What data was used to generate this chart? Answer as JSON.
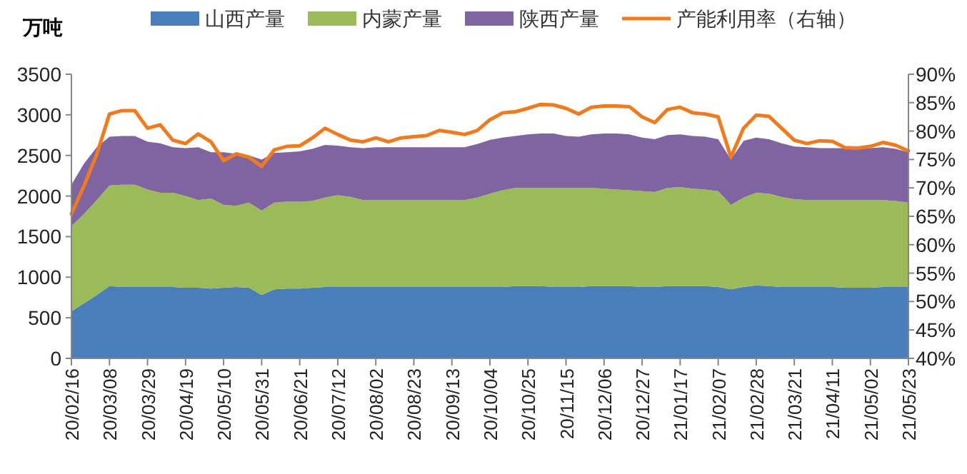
{
  "chart_data": {
    "type": "area",
    "stacked": true,
    "ylabel": "万吨",
    "legend": "top",
    "categories": [
      "20/02/16",
      null,
      null,
      "20/03/08",
      null,
      null,
      "20/03/29",
      null,
      null,
      "20/04/19",
      null,
      null,
      "20/05/10",
      null,
      null,
      "20/05/31",
      null,
      null,
      "20/06/21",
      null,
      null,
      "20/07/12",
      null,
      null,
      "20/08/02",
      null,
      null,
      "20/08/23",
      null,
      null,
      "20/09/13",
      null,
      null,
      "20/10/04",
      null,
      null,
      "20/10/25",
      null,
      null,
      "20/11/15",
      null,
      null,
      "20/12/06",
      null,
      null,
      "20/12/27",
      null,
      null,
      "21/01/17",
      null,
      null,
      "21/02/07",
      null,
      null,
      "21/02/28",
      null,
      null,
      "21/03/21",
      null,
      null,
      "21/04/11",
      null,
      null,
      "21/05/02",
      null,
      null,
      "21/05/23"
    ],
    "ylim": [
      0,
      3500
    ],
    "yticks": [
      0,
      500,
      1000,
      1500,
      2000,
      2500,
      3000,
      3500
    ],
    "y2lim": [
      40,
      90
    ],
    "y2ticks": [
      {
        "value": 40,
        "label": "40%"
      },
      {
        "value": 45,
        "label": "45%"
      },
      {
        "value": 50,
        "label": "50%"
      },
      {
        "value": 55,
        "label": "55%"
      },
      {
        "value": 60,
        "label": "60%"
      },
      {
        "value": 65,
        "label": "65%"
      },
      {
        "value": 70,
        "label": "70%"
      },
      {
        "value": 75,
        "label": "75%"
      },
      {
        "value": 80,
        "label": "80%"
      },
      {
        "value": 85,
        "label": "85%"
      },
      {
        "value": 90,
        "label": "90%"
      }
    ],
    "series": [
      {
        "name": "山西产量",
        "color": "#4a7ebb",
        "values": [
          580,
          680,
          780,
          890,
          880,
          880,
          880,
          880,
          880,
          870,
          870,
          860,
          870,
          880,
          870,
          780,
          850,
          860,
          860,
          870,
          880,
          880,
          880,
          880,
          880,
          880,
          880,
          880,
          880,
          880,
          880,
          880,
          880,
          880,
          880,
          890,
          890,
          890,
          880,
          880,
          880,
          890,
          890,
          890,
          890,
          880,
          880,
          890,
          890,
          890,
          890,
          880,
          850,
          880,
          900,
          890,
          880,
          880,
          880,
          880,
          880,
          870,
          870,
          870,
          880,
          880,
          880
        ]
      },
      {
        "name": "内蒙产量",
        "color": "#9bbb59",
        "values": [
          1050,
          1100,
          1170,
          1240,
          1260,
          1260,
          1200,
          1160,
          1160,
          1130,
          1080,
          1110,
          1020,
          1000,
          1050,
          1040,
          1070,
          1070,
          1070,
          1070,
          1100,
          1130,
          1110,
          1070,
          1070,
          1070,
          1070,
          1070,
          1070,
          1070,
          1070,
          1070,
          1100,
          1150,
          1190,
          1210,
          1210,
          1210,
          1220,
          1220,
          1220,
          1210,
          1200,
          1190,
          1180,
          1180,
          1170,
          1210,
          1220,
          1200,
          1190,
          1180,
          1040,
          1100,
          1140,
          1140,
          1110,
          1080,
          1070,
          1070,
          1070,
          1080,
          1080,
          1080,
          1070,
          1060,
          1040
        ]
      },
      {
        "name": "陕西产量",
        "color": "#8064a2",
        "values": [
          510,
          620,
          650,
          600,
          600,
          600,
          590,
          610,
          560,
          590,
          650,
          570,
          650,
          640,
          580,
          630,
          610,
          610,
          620,
          640,
          650,
          610,
          610,
          640,
          650,
          650,
          650,
          650,
          650,
          650,
          650,
          650,
          660,
          660,
          650,
          640,
          660,
          670,
          670,
          640,
          630,
          660,
          680,
          690,
          690,
          660,
          650,
          650,
          650,
          650,
          650,
          640,
          560,
          700,
          680,
          670,
          660,
          650,
          650,
          640,
          640,
          640,
          640,
          640,
          650,
          640,
          620
        ]
      },
      {
        "name": "产能利用率（右轴）",
        "type": "line",
        "axis": "y2",
        "color": "#f07a1e",
        "values": [
          65.4,
          70.4,
          75.9,
          83.0,
          83.6,
          83.6,
          80.5,
          81.1,
          78.4,
          77.8,
          79.5,
          78.1,
          74.8,
          76.0,
          75.4,
          73.8,
          76.7,
          77.3,
          77.4,
          78.8,
          80.5,
          79.4,
          78.4,
          78.1,
          78.8,
          78.1,
          78.8,
          79.0,
          79.2,
          80.1,
          79.8,
          79.4,
          80.1,
          82.0,
          83.2,
          83.4,
          84.0,
          84.7,
          84.6,
          84.0,
          83.0,
          84.2,
          84.4,
          84.4,
          84.3,
          82.5,
          81.5,
          83.8,
          84.2,
          83.2,
          83.0,
          82.5,
          75.4,
          80.5,
          82.8,
          82.6,
          80.5,
          78.4,
          77.8,
          78.3,
          78.2,
          77.1,
          77.0,
          77.3,
          78.0,
          77.5,
          76.5
        ]
      }
    ]
  }
}
